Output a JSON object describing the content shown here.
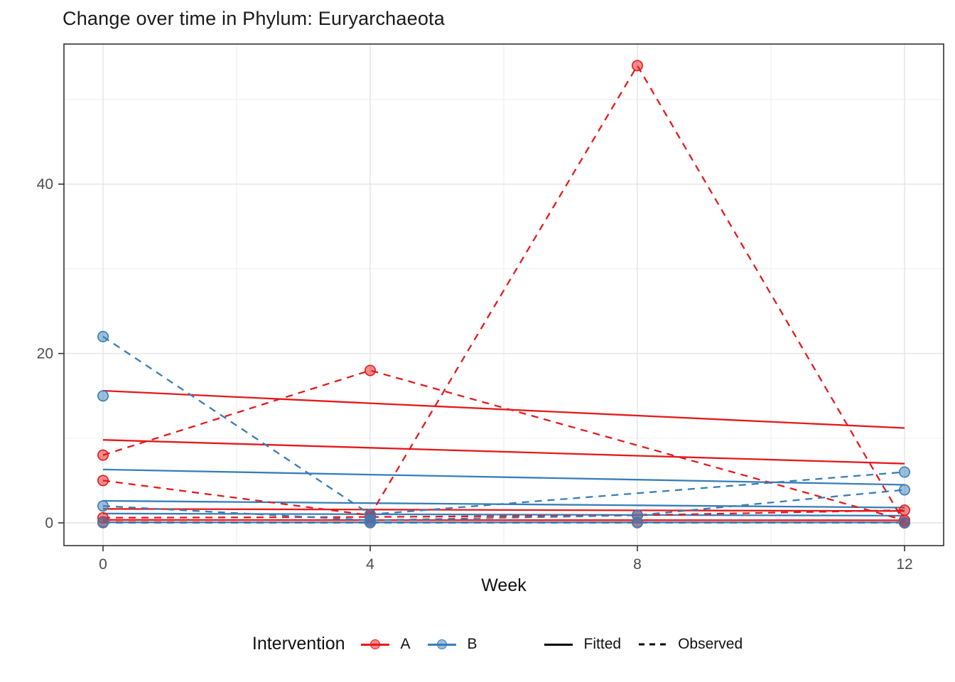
{
  "chart_data": {
    "type": "line",
    "title": "Change over time in Phylum: Euryarchaeota",
    "xlabel": "Week",
    "ylabel": "",
    "weeks": [
      0,
      4,
      8,
      12
    ],
    "x_ticks": [
      0,
      4,
      8,
      12
    ],
    "x_minor": [
      2,
      6,
      10
    ],
    "y_ticks": [
      0,
      20,
      40
    ],
    "y_minor": [
      10,
      30,
      50
    ],
    "ylim": [
      -1,
      59
    ],
    "grid": true,
    "legend_position": "bottom",
    "series": [
      {
        "id": "A-fitted-1",
        "intervention": "A",
        "kind": "fitted",
        "values": [
          15.6,
          14.13,
          12.67,
          11.2
        ]
      },
      {
        "id": "A-fitted-2",
        "intervention": "A",
        "kind": "fitted",
        "values": [
          9.8,
          8.87,
          7.93,
          7.0
        ]
      },
      {
        "id": "B-fitted-1",
        "intervention": "B",
        "kind": "fitted",
        "values": [
          6.3,
          5.7,
          5.1,
          4.5
        ]
      },
      {
        "id": "B-fitted-2",
        "intervention": "B",
        "kind": "fitted",
        "values": [
          2.6,
          2.33,
          2.07,
          1.8
        ]
      },
      {
        "id": "A-fitted-3",
        "intervention": "A",
        "kind": "fitted",
        "values": [
          1.65,
          1.57,
          1.48,
          1.4
        ]
      },
      {
        "id": "B-fitted-3",
        "intervention": "B",
        "kind": "fitted",
        "values": [
          1.1,
          1.02,
          0.93,
          0.85
        ]
      },
      {
        "id": "A-fitted-4",
        "intervention": "A",
        "kind": "fitted",
        "values": [
          0.35,
          0.33,
          0.32,
          0.3
        ]
      },
      {
        "id": "B-fitted-4",
        "intervention": "B",
        "kind": "fitted",
        "values": [
          0.07,
          0.06,
          0.06,
          0.05
        ]
      },
      {
        "id": "A-observed-1",
        "intervention": "A",
        "kind": "observed",
        "values": [
          8,
          18,
          null,
          0.3
        ]
      },
      {
        "id": "A-observed-2",
        "intervention": "A",
        "kind": "observed",
        "values": [
          5,
          0.9,
          54,
          0
        ]
      },
      {
        "id": "A-observed-3",
        "intervention": "A",
        "kind": "observed",
        "values": [
          0.6,
          0.7,
          0.9,
          1.5
        ]
      },
      {
        "id": "A-observed-4",
        "intervention": "A",
        "kind": "observed",
        "values": [
          0.1,
          0.05,
          0.05,
          0.05
        ]
      },
      {
        "id": "B-observed-1",
        "intervention": "B",
        "kind": "observed",
        "values": [
          22,
          1,
          null,
          6
        ]
      },
      {
        "id": "B-observed-2",
        "intervention": "B",
        "kind": "observed",
        "values": [
          15,
          null,
          null,
          null
        ]
      },
      {
        "id": "B-observed-3",
        "intervention": "B",
        "kind": "observed",
        "values": [
          2,
          0.3,
          0.9,
          3.9
        ]
      },
      {
        "id": "B-observed-4",
        "intervention": "B",
        "kind": "observed",
        "values": [
          0.02,
          0.02,
          0.02,
          0.02
        ]
      }
    ]
  },
  "legend": {
    "title": "Intervention",
    "items": [
      {
        "label": "A",
        "color": "#e41a1c"
      },
      {
        "label": "B",
        "color": "#377eb8"
      }
    ],
    "linetypes": [
      {
        "label": "Fitted",
        "style": "solid"
      },
      {
        "label": "Observed",
        "style": "dashed"
      }
    ]
  },
  "colors": {
    "intervention_a": "#e41a1c",
    "intervention_b": "#377eb8",
    "grid_major": "#e4e4e4",
    "grid_minor": "#f1f1f1",
    "panel_border": "#333333",
    "axis_text": "#4d4d4d",
    "tick": "#333333",
    "legend_key_line": "#000000"
  }
}
